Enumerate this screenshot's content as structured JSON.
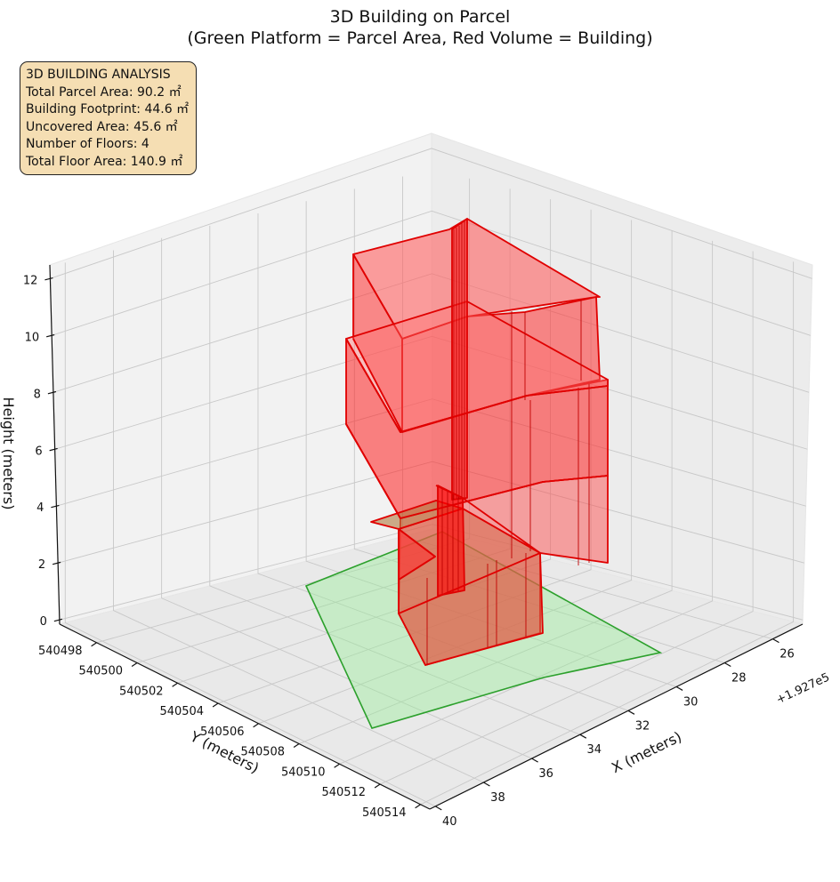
{
  "chart_data": {
    "type": "3d-polygon",
    "title": "3D Building on Parcel",
    "subtitle": "(Green Platform = Parcel Area, Red Volume = Building)",
    "xlabel": "X (meters)",
    "ylabel": "Y (meters)",
    "zlabel": "Height (meters)",
    "x_offset_label": "+1.927e5",
    "x_ticks": [
      "26",
      "28",
      "30",
      "32",
      "34",
      "36",
      "38",
      "40"
    ],
    "y_ticks": [
      "540498",
      "540500",
      "540502",
      "540504",
      "540506",
      "540508",
      "540510",
      "540512",
      "540514"
    ],
    "z_ticks": [
      "0",
      "2",
      "4",
      "6",
      "8",
      "10",
      "12"
    ],
    "grid": true,
    "series": [
      {
        "name": "Parcel Area",
        "role": "parcel-platform",
        "color": "#2ca02c",
        "fill": "#90ee90"
      },
      {
        "name": "Building",
        "role": "building-volume",
        "color": "#e00000",
        "fill": "#ff0000"
      }
    ]
  },
  "info_box": {
    "heading": "3D BUILDING ANALYSIS",
    "lines": [
      "Total Parcel Area: 90.2 ㎡",
      "Building Footprint: 44.6 ㎡",
      "Uncovered Area: 45.6 ㎡",
      "Number of Floors: 4",
      "Total Floor Area: 140.9 ㎡"
    ]
  }
}
